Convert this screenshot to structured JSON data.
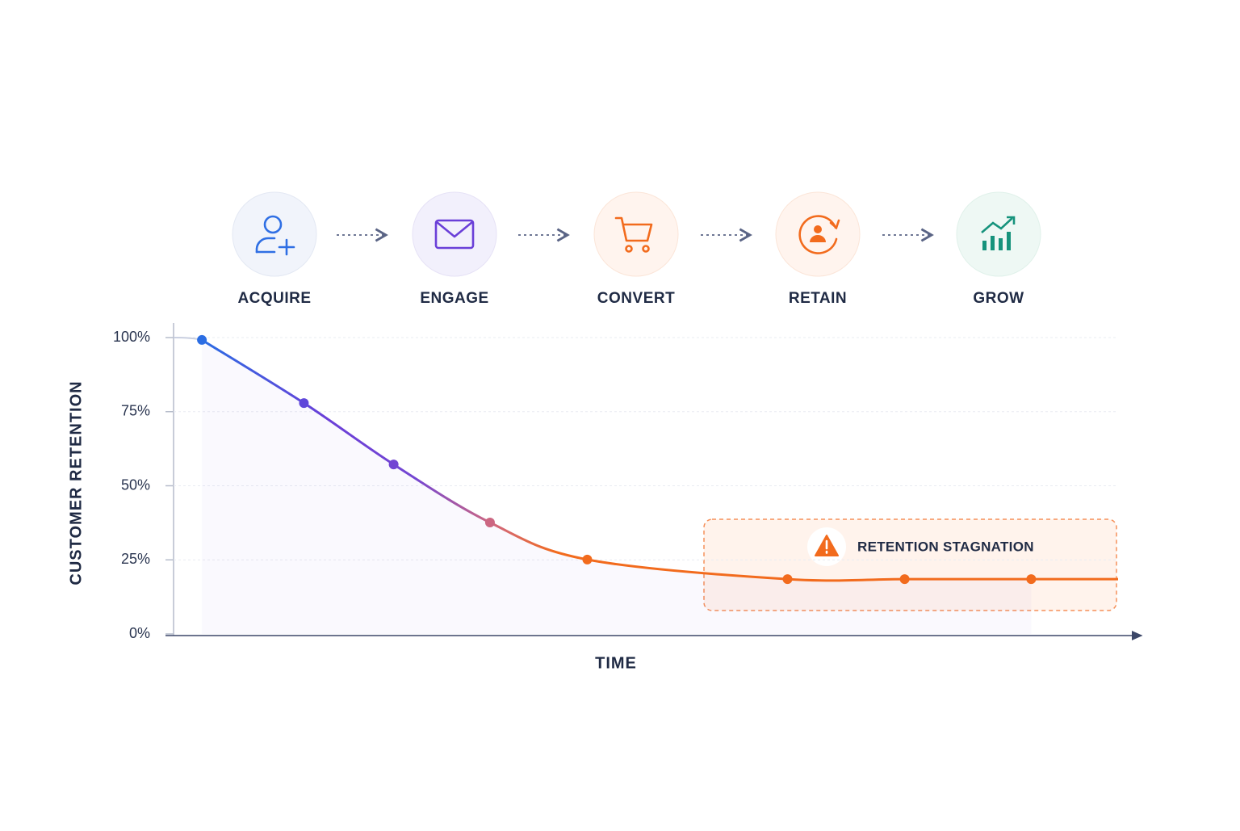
{
  "stages": [
    "ACQUIRE",
    "ENGAGE",
    "CONVERT",
    "RETAIN",
    "GROW"
  ],
  "chart_data": {
    "type": "line",
    "ylabel": "CUSTOMER RETENTION",
    "xlabel": "TIME",
    "x": [
      3.0,
      13.8,
      23.3,
      33.5,
      43.8,
      65.0,
      77.4,
      90.8
    ],
    "values": [
      99.2,
      77.9,
      57.2,
      37.6,
      25.1,
      18.5,
      18.5,
      18.5
    ],
    "color": "#f26b1d",
    "xlim": [
      0,
      100
    ],
    "ylim": [
      0,
      100
    ],
    "yticks": [
      {
        "value": 0,
        "label": "0%"
      },
      {
        "value": 25,
        "label": "25%"
      },
      {
        "value": 50,
        "label": "50%"
      },
      {
        "value": 75,
        "label": "75%"
      },
      {
        "value": 100,
        "label": "100%"
      }
    ],
    "grid": true,
    "annotation": "RETENTION STAGNATION"
  }
}
